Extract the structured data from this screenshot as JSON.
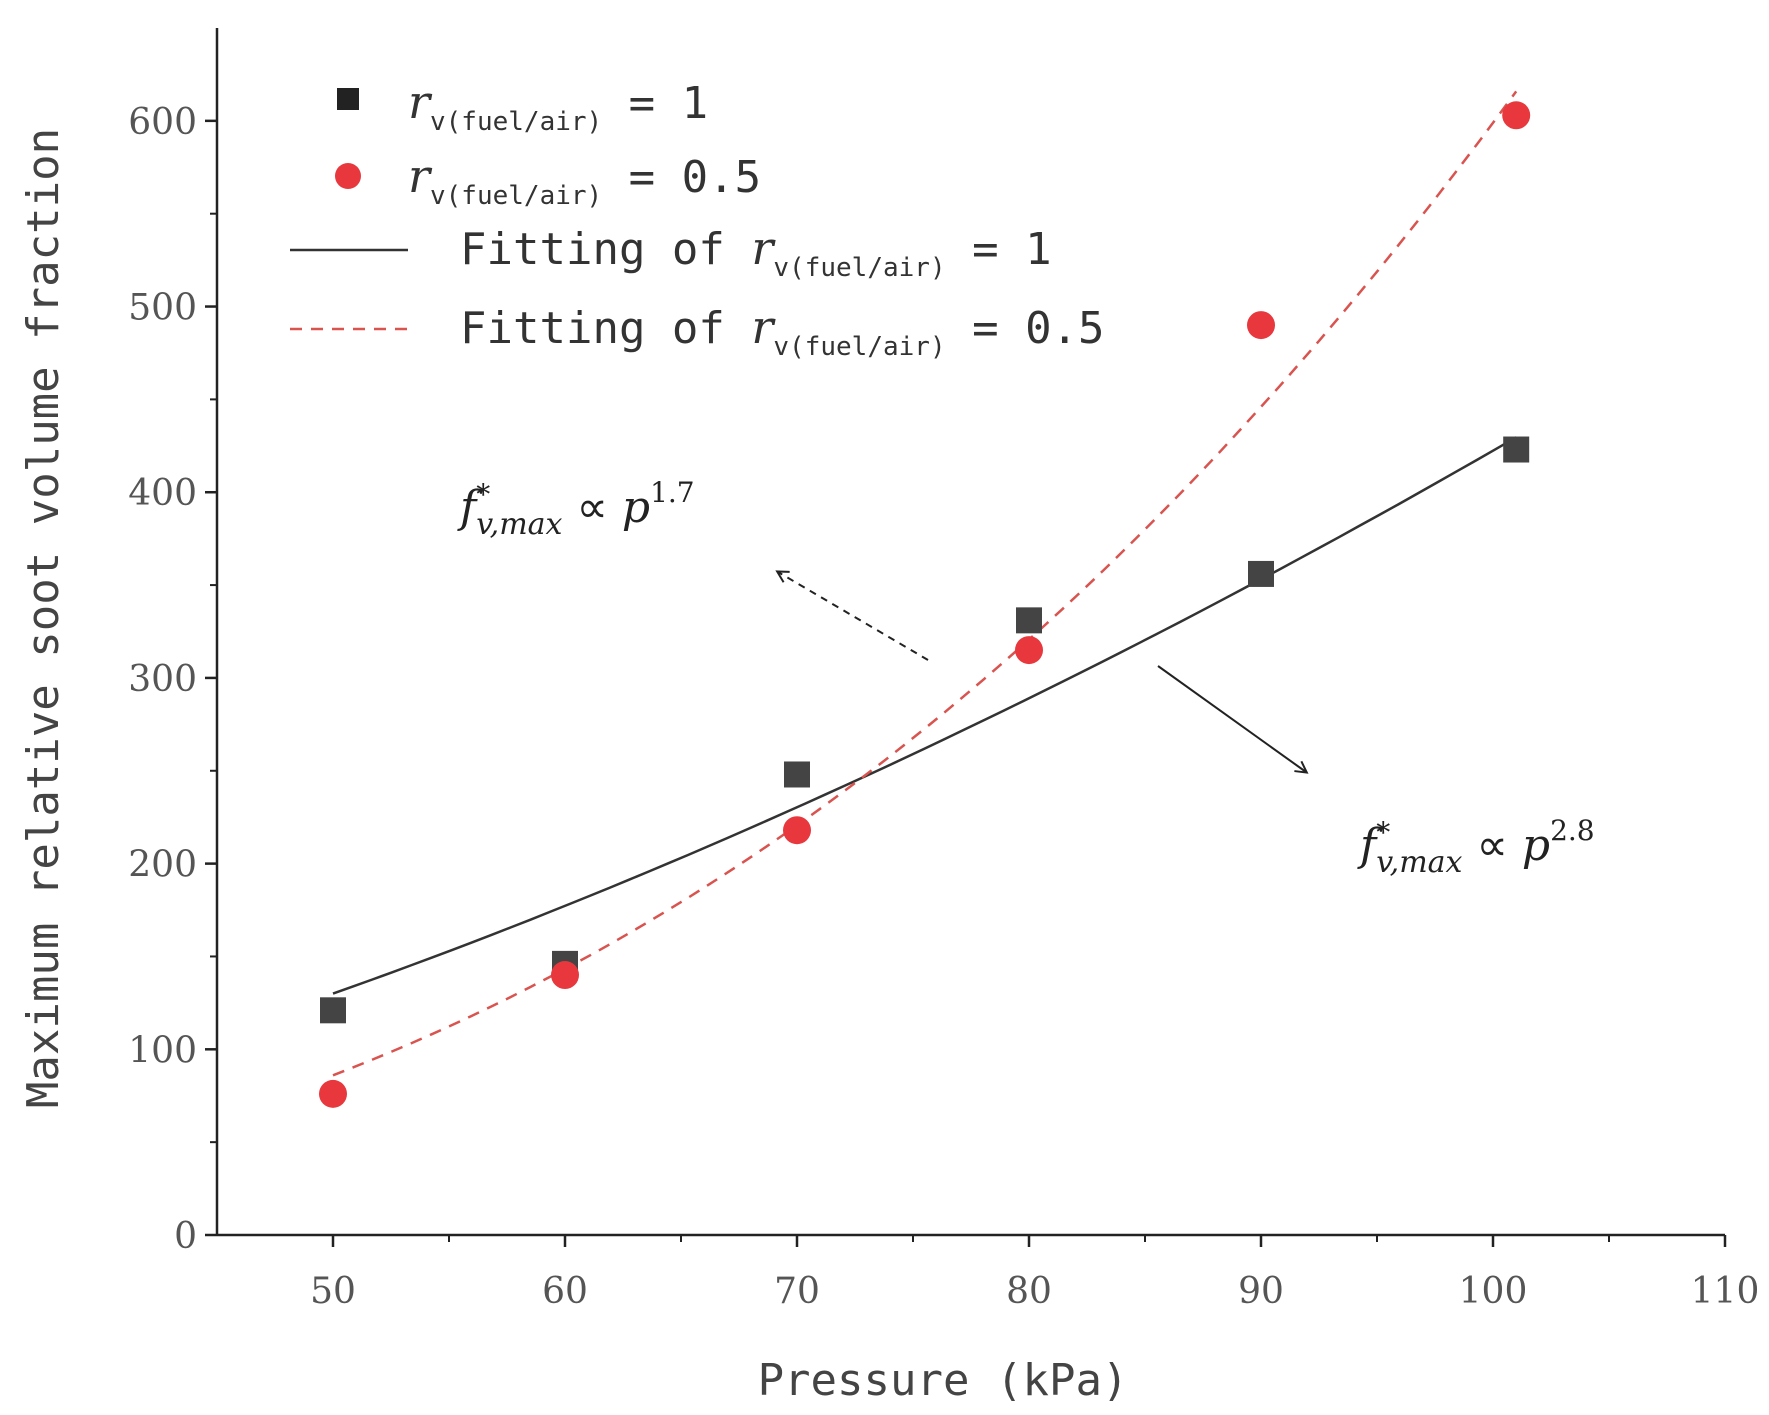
{
  "chart_data": {
    "type": "scatter",
    "title": "",
    "xlabel": "Pressure (kPa)",
    "ylabel": "Maximum relative soot volume fraction",
    "xlim": [
      45,
      110
    ],
    "ylim": [
      0,
      650
    ],
    "x_ticks": [
      50,
      60,
      70,
      80,
      90,
      100,
      110
    ],
    "y_ticks": [
      0,
      100,
      200,
      300,
      400,
      500,
      600
    ],
    "grid": false,
    "legend_position": "top-left",
    "series": [
      {
        "name": "r_v(fuel/air) = 1",
        "legend_prefix": "r",
        "legend_sub": "v(fuel/air)",
        "legend_suffix": " = 1",
        "marker": "square",
        "color": "#444444",
        "x": [
          50,
          60,
          70,
          80,
          90,
          101
        ],
        "y": [
          121,
          146,
          248,
          331,
          356,
          423
        ]
      },
      {
        "name": "r_v(fuel/air) = 0.5",
        "legend_prefix": "r",
        "legend_sub": "v(fuel/air)",
        "legend_suffix": " = 0.5",
        "marker": "circle",
        "color": "#e8383d",
        "x": [
          50,
          60,
          70,
          80,
          90,
          101
        ],
        "y": [
          76,
          140,
          218,
          315,
          490,
          603
        ]
      }
    ],
    "fits": [
      {
        "name": "Fitting of r_v(fuel/air) = 1",
        "legend_prefix": "Fitting of ",
        "legend_sym": "r",
        "legend_sub": "v(fuel/air)",
        "legend_suffix": " = 1",
        "style": "solid",
        "color": "#333333",
        "exponent": 1.7,
        "x_range": [
          50,
          101
        ],
        "y_at_50": 130
      },
      {
        "name": "Fitting of r_v(fuel/air) = 0.5",
        "legend_prefix": "Fitting of ",
        "legend_sym": "r",
        "legend_sub": "v(fuel/air)",
        "legend_suffix": " = 0.5",
        "style": "dashed",
        "color": "#d9534f",
        "exponent": 2.8,
        "x_range": [
          50,
          101
        ],
        "y_at_50": 86
      }
    ],
    "annotations": [
      {
        "base": "f",
        "star": "*",
        "sub": "v,max",
        "op": " ∝ ",
        "var": "p",
        "sup": "1.7",
        "arrow": "dashed"
      },
      {
        "base": "f",
        "star": "*",
        "sub": "v,max",
        "op": " ∝ ",
        "var": "p",
        "sup": "2.8",
        "arrow": "solid"
      }
    ]
  }
}
